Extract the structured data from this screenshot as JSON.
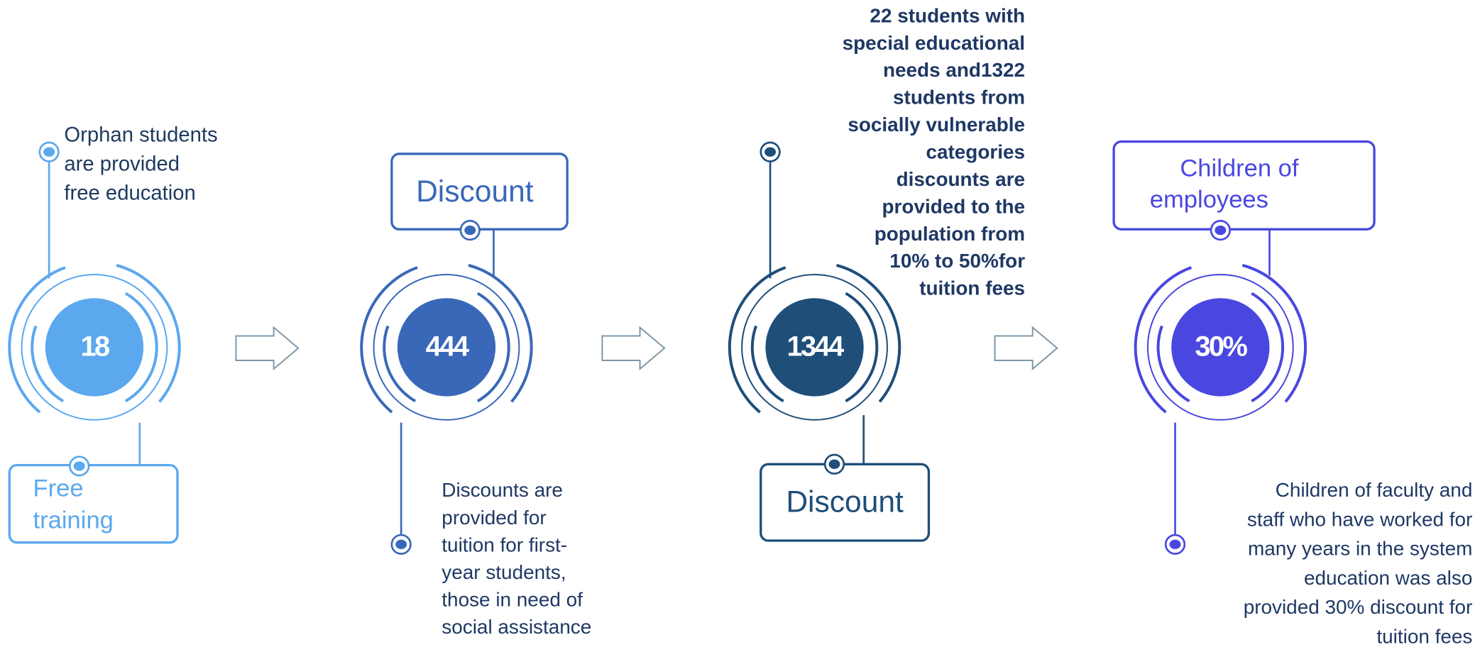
{
  "steps": [
    {
      "value": "18",
      "color": "#5ba8ee",
      "box": [
        "Free",
        "training"
      ],
      "description": [
        "Orphan students",
        "are provided",
        "free education"
      ]
    },
    {
      "value": "444",
      "color": "#3a68b8",
      "box": [
        "Discount"
      ],
      "description": [
        "Discounts are",
        "provided for",
        "tuition for first-",
        "year students,",
        "those in need of",
        "social assistance"
      ]
    },
    {
      "value": "1344",
      "color": "#1f4e79",
      "box": [
        "Discount"
      ],
      "description": [
        "22 students with",
        "special educational",
        "needs and1322",
        "students from",
        "socially vulnerable",
        "categories",
        "discounts are",
        "provided to the",
        "population from",
        "10% to 50%for",
        "tuition fees"
      ]
    },
    {
      "value": "30%",
      "color": "#4a47e0",
      "box": [
        "Children of",
        "employees"
      ],
      "description": [
        "Children of faculty and",
        "staff who have worked for",
        "many years in the system",
        "education was also",
        "provided 30% discount for",
        "tuition fees"
      ]
    }
  ]
}
